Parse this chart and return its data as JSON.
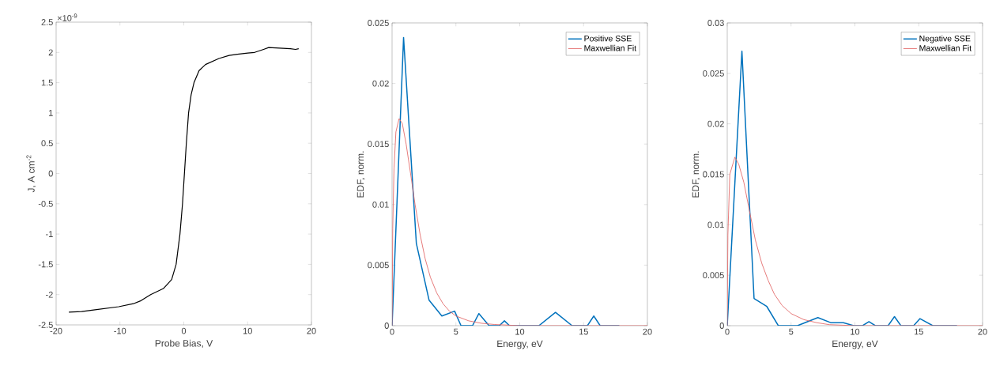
{
  "chart_data": [
    {
      "type": "line",
      "xlabel": "Probe Bias, V",
      "ylabel": "J, A cm$^{-2}$",
      "annotations": [
        "×10$^{-9}$"
      ],
      "xlim": [
        -20,
        20
      ],
      "ylim": [
        -2.5,
        2.5
      ],
      "xticks": [
        -20,
        -10,
        0,
        10,
        20
      ],
      "yticks": [
        -2.5,
        -2,
        -1.5,
        -1,
        -0.5,
        0,
        0.5,
        1,
        1.5,
        2,
        2.5
      ],
      "series": [
        {
          "color": "#000000",
          "x": [
            -18,
            -16,
            -13.9,
            -10.2,
            -7.9,
            -6.7,
            -5.2,
            -3.2,
            -1.9,
            -1.2,
            -0.6,
            -0.2,
            0.1,
            0.4,
            0.75,
            1.15,
            1.6,
            2.4,
            3.4,
            5.5,
            7.1,
            8.4,
            10,
            11.1,
            12.5,
            13.3,
            15,
            16.7,
            17.5,
            18
          ],
          "values": [
            -2.29,
            -2.28,
            -2.25,
            -2.2,
            -2.15,
            -2.1,
            -2.0,
            -1.9,
            -1.75,
            -1.5,
            -1.0,
            -0.5,
            0,
            0.5,
            1.0,
            1.3,
            1.5,
            1.7,
            1.8,
            1.9,
            1.95,
            1.97,
            1.99,
            2.0,
            2.05,
            2.08,
            2.07,
            2.06,
            2.05,
            2.06
          ]
        }
      ]
    },
    {
      "type": "line",
      "xlabel": "Energy, eV",
      "ylabel": "EDF, norm.",
      "legend": "top right",
      "xlim": [
        0,
        20
      ],
      "ylim": [
        0,
        0.025
      ],
      "xticks": [
        0,
        5,
        10,
        15,
        20
      ],
      "yticks": [
        0,
        0.005,
        0.01,
        0.015,
        0.02,
        0.025
      ],
      "series": [
        {
          "name": "Positive SSE",
          "color": "#0072bd",
          "x": [
            0,
            0.9,
            1.9,
            2.9,
            3.9,
            4.9,
            5.4,
            6.3,
            6.8,
            7.6,
            8.4,
            8.8,
            9.2,
            11.5,
            12.8,
            14.1,
            15.3,
            15.8,
            16.3,
            17.8
          ],
          "values": [
            0,
            0.0238,
            0.0068,
            0.0021,
            0.0008,
            0.0012,
            0,
            0,
            0.001,
            0,
            0,
            0.0004,
            0,
            0,
            0.0011,
            0,
            0,
            0.0008,
            0,
            0
          ]
        },
        {
          "name": "Maxwellian Fit",
          "color": "#e36b6b",
          "x": [
            0,
            0.05,
            0.15,
            0.3,
            0.55,
            0.8,
            1.1,
            1.5,
            1.8,
            2.2,
            2.6,
            3,
            3.5,
            4,
            4.5,
            5,
            6,
            7,
            8,
            10,
            20
          ],
          "values": [
            0,
            0.008,
            0.013,
            0.016,
            0.0171,
            0.0167,
            0.015,
            0.0122,
            0.01,
            0.0075,
            0.0055,
            0.004,
            0.0027,
            0.0018,
            0.0012,
            0.0008,
            0.0004,
            0.0002,
            0.0001,
            0,
            0
          ]
        }
      ]
    },
    {
      "type": "line",
      "xlabel": "Energy, eV",
      "ylabel": "EDF, norm.",
      "legend": "top right",
      "xlim": [
        0,
        20
      ],
      "ylim": [
        0,
        0.03
      ],
      "xticks": [
        0,
        5,
        10,
        15,
        20
      ],
      "yticks": [
        0,
        0.005,
        0.01,
        0.015,
        0.02,
        0.025,
        0.03
      ],
      "series": [
        {
          "name": "Negative SSE",
          "color": "#0072bd",
          "x": [
            0,
            1.15,
            2.1,
            3.1,
            4.0,
            5.5,
            7.1,
            8.1,
            9.1,
            9.9,
            10.6,
            11.1,
            11.6,
            12.6,
            13.1,
            13.6,
            14.6,
            15.1,
            16.1,
            18
          ],
          "values": [
            0,
            0.0272,
            0.0027,
            0.0019,
            0,
            0,
            0.0008,
            0.0003,
            0.0003,
            0,
            0,
            0.0004,
            0,
            0,
            0.0009,
            0,
            0,
            0.0007,
            0,
            0
          ]
        },
        {
          "name": "Maxwellian Fit",
          "color": "#e36b6b",
          "x": [
            0,
            0.05,
            0.2,
            0.6,
            0.9,
            1.3,
            1.8,
            2.2,
            2.7,
            3.2,
            3.7,
            4.3,
            5,
            6,
            7,
            8,
            10,
            20
          ],
          "values": [
            0,
            0.009,
            0.015,
            0.0167,
            0.016,
            0.0142,
            0.011,
            0.0085,
            0.0062,
            0.0045,
            0.0031,
            0.002,
            0.0012,
            0.0006,
            0.0003,
            0.0001,
            0,
            0
          ]
        }
      ]
    }
  ]
}
